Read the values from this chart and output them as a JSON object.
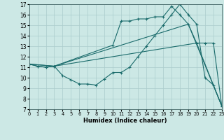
{
  "xlabel": "Humidex (Indice chaleur)",
  "bg_color": "#cce8e5",
  "line_color": "#1a6b6b",
  "grid_color": "#aacccc",
  "xlim": [
    0,
    23
  ],
  "ylim": [
    7,
    17
  ],
  "xticks": [
    0,
    1,
    2,
    3,
    4,
    5,
    6,
    7,
    8,
    9,
    10,
    11,
    12,
    13,
    14,
    15,
    16,
    17,
    18,
    19,
    20,
    21,
    22,
    23
  ],
  "yticks": [
    7,
    8,
    9,
    10,
    11,
    12,
    13,
    14,
    15,
    16,
    17
  ],
  "line1x": [
    0,
    1,
    2,
    3,
    4,
    5,
    6,
    7,
    8,
    9,
    10,
    11,
    12,
    13,
    14,
    15,
    16,
    17,
    18,
    19,
    20,
    21,
    22,
    23
  ],
  "line1y": [
    11.3,
    11.1,
    11.0,
    11.1,
    10.2,
    9.8,
    9.4,
    9.4,
    9.3,
    9.9,
    10.5,
    10.5,
    11.0,
    12.0,
    13.0,
    14.0,
    15.0,
    16.0,
    17.0,
    16.0,
    15.1,
    10.0,
    9.3,
    7.3
  ],
  "line2x": [
    0,
    1,
    2,
    3,
    10,
    11,
    12,
    13,
    14,
    15,
    16,
    17,
    18,
    19,
    20,
    21,
    22,
    23
  ],
  "line2y": [
    11.3,
    11.1,
    11.0,
    11.1,
    13.1,
    15.4,
    15.4,
    15.6,
    15.6,
    15.8,
    15.8,
    16.8,
    16.0,
    15.1,
    13.3,
    13.3,
    13.3,
    7.3
  ],
  "line3x": [
    0,
    3,
    19,
    23
  ],
  "line3y": [
    11.3,
    11.1,
    15.1,
    7.3
  ],
  "line4x": [
    0,
    3,
    20,
    23
  ],
  "line4y": [
    11.3,
    11.1,
    13.3,
    7.3
  ]
}
